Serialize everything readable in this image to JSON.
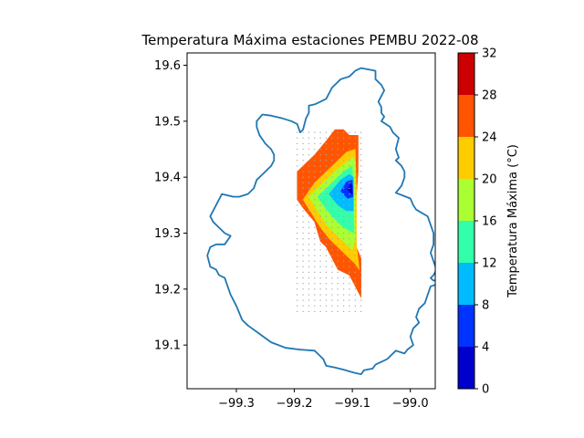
{
  "chart_data": {
    "type": "filled-contour map",
    "title": "Temperatura Máxima estaciones PEMBU 2022-08",
    "xlim": [
      -99.385,
      -98.957
    ],
    "ylim": [
      19.022,
      19.622
    ],
    "x_ticks": [
      -99.3,
      -99.2,
      -99.1,
      -99.0
    ],
    "x_tick_labels": [
      "−99.3",
      "−99.2",
      "−99.1",
      "−99.0"
    ],
    "y_ticks": [
      19.1,
      19.2,
      19.3,
      19.4,
      19.5,
      19.6
    ],
    "y_tick_labels": [
      "19.1",
      "19.2",
      "19.3",
      "19.4",
      "19.5",
      "19.6"
    ],
    "colorbar": {
      "label": "Temperatura Máxima (°C)",
      "levels": [
        0,
        4,
        8,
        12,
        16,
        20,
        24,
        28,
        32
      ],
      "tick_labels": [
        "0",
        "4",
        "8",
        "12",
        "16",
        "20",
        "24",
        "28",
        "32"
      ],
      "colors": [
        "#0000cc",
        "#0033ff",
        "#00bbff",
        "#33ffaa",
        "#aaff33",
        "#ffcc00",
        "#ff5500",
        "#cc0000"
      ]
    },
    "boundary_color": "#1f77b4",
    "interpolation_grid": {
      "x": [
        -99.195,
        -99.085
      ],
      "y": [
        19.16,
        19.48
      ],
      "step": 0.01
    },
    "contour_bands": [
      {
        "range": [
          24,
          28
        ],
        "color": "#ff5500",
        "polygon": [
          [
            -99.195,
            19.41
          ],
          [
            -99.165,
            19.44
          ],
          [
            -99.145,
            19.465
          ],
          [
            -99.13,
            19.485
          ],
          [
            -99.115,
            19.485
          ],
          [
            -99.105,
            19.475
          ],
          [
            -99.09,
            19.475
          ],
          [
            -99.09,
            19.41
          ],
          [
            -99.095,
            19.34
          ],
          [
            -99.095,
            19.28
          ],
          [
            -99.085,
            19.255
          ],
          [
            -99.085,
            19.185
          ],
          [
            -99.095,
            19.205
          ],
          [
            -99.105,
            19.225
          ],
          [
            -99.125,
            19.235
          ],
          [
            -99.135,
            19.255
          ],
          [
            -99.145,
            19.275
          ],
          [
            -99.155,
            19.285
          ],
          [
            -99.165,
            19.32
          ],
          [
            -99.185,
            19.345
          ],
          [
            -99.195,
            19.36
          ]
        ]
      },
      {
        "range": [
          20,
          24
        ],
        "color": "#ffcc00",
        "polygon": [
          [
            -99.185,
            19.36
          ],
          [
            -99.165,
            19.39
          ],
          [
            -99.135,
            19.42
          ],
          [
            -99.11,
            19.445
          ],
          [
            -99.095,
            19.45
          ],
          [
            -99.093,
            19.38
          ],
          [
            -99.093,
            19.28
          ],
          [
            -99.088,
            19.235
          ],
          [
            -99.095,
            19.245
          ],
          [
            -99.105,
            19.255
          ],
          [
            -99.12,
            19.27
          ],
          [
            -99.14,
            19.29
          ],
          [
            -99.155,
            19.31
          ],
          [
            -99.17,
            19.335
          ]
        ]
      },
      {
        "range": [
          16,
          20
        ],
        "color": "#aaff33",
        "polygon": [
          [
            -99.175,
            19.365
          ],
          [
            -99.15,
            19.39
          ],
          [
            -99.125,
            19.415
          ],
          [
            -99.1,
            19.435
          ],
          [
            -99.095,
            19.43
          ],
          [
            -99.095,
            19.29
          ],
          [
            -99.1,
            19.27
          ],
          [
            -99.12,
            19.29
          ],
          [
            -99.145,
            19.315
          ],
          [
            -99.16,
            19.34
          ]
        ]
      },
      {
        "range": [
          12,
          16
        ],
        "color": "#33ffaa",
        "polygon": [
          [
            -99.16,
            19.365
          ],
          [
            -99.135,
            19.39
          ],
          [
            -99.115,
            19.41
          ],
          [
            -99.1,
            19.42
          ],
          [
            -99.097,
            19.3
          ],
          [
            -99.115,
            19.31
          ],
          [
            -99.135,
            19.33
          ],
          [
            -99.15,
            19.35
          ]
        ]
      },
      {
        "range": [
          8,
          12
        ],
        "color": "#00bbff",
        "polygon": [
          [
            -99.14,
            19.37
          ],
          [
            -99.12,
            19.395
          ],
          [
            -99.105,
            19.405
          ],
          [
            -99.098,
            19.4
          ],
          [
            -99.098,
            19.34
          ],
          [
            -99.11,
            19.34
          ],
          [
            -99.125,
            19.35
          ]
        ]
      },
      {
        "range": [
          4,
          8
        ],
        "color": "#0033ff",
        "polygon": [
          [
            -99.12,
            19.375
          ],
          [
            -99.11,
            19.392
          ],
          [
            -99.1,
            19.395
          ],
          [
            -99.099,
            19.365
          ],
          [
            -99.108,
            19.362
          ]
        ]
      },
      {
        "range": [
          0,
          4
        ],
        "color": "#0000cc",
        "polygon": [
          [
            -99.108,
            19.378
          ],
          [
            -99.103,
            19.388
          ],
          [
            -99.1,
            19.386
          ],
          [
            -99.1,
            19.37
          ],
          [
            -99.104,
            19.372
          ]
        ]
      }
    ],
    "boundary_outline": [
      [
        -99.07,
        19.592
      ],
      [
        -99.06,
        19.59
      ],
      [
        -99.06,
        19.575
      ],
      [
        -99.055,
        19.57
      ],
      [
        -99.05,
        19.565
      ],
      [
        -99.045,
        19.555
      ],
      [
        -99.05,
        19.545
      ],
      [
        -99.055,
        19.535
      ],
      [
        -99.05,
        19.525
      ],
      [
        -99.05,
        19.515
      ],
      [
        -99.045,
        19.508
      ],
      [
        -99.05,
        19.5
      ],
      [
        -99.035,
        19.49
      ],
      [
        -99.03,
        19.48
      ],
      [
        -99.02,
        19.47
      ],
      [
        -99.025,
        19.45
      ],
      [
        -99.02,
        19.435
      ],
      [
        -99.025,
        19.43
      ],
      [
        -99.015,
        19.42
      ],
      [
        -99.01,
        19.41
      ],
      [
        -99.01,
        19.4
      ],
      [
        -99.015,
        19.385
      ],
      [
        -99.025,
        19.372
      ],
      [
        -99.0,
        19.362
      ],
      [
        -98.995,
        19.35
      ],
      [
        -98.99,
        19.342
      ],
      [
        -98.97,
        19.33
      ],
      [
        -98.965,
        19.315
      ],
      [
        -98.96,
        19.3
      ],
      [
        -98.96,
        19.28
      ],
      [
        -98.965,
        19.265
      ],
      [
        -98.96,
        19.25
      ],
      [
        -98.955,
        19.235
      ],
      [
        -98.96,
        19.225
      ],
      [
        -98.965,
        19.22
      ],
      [
        -98.96,
        19.215
      ],
      [
        -98.945,
        19.22
      ],
      [
        -98.95,
        19.21
      ],
      [
        -98.965,
        19.205
      ],
      [
        -98.97,
        19.19
      ],
      [
        -98.975,
        19.175
      ],
      [
        -98.985,
        19.165
      ],
      [
        -98.99,
        19.15
      ],
      [
        -98.985,
        19.14
      ],
      [
        -98.995,
        19.13
      ],
      [
        -99.0,
        19.115
      ],
      [
        -98.995,
        19.1
      ],
      [
        -99.005,
        19.092
      ],
      [
        -99.01,
        19.085
      ],
      [
        -99.025,
        19.09
      ],
      [
        -99.04,
        19.075
      ],
      [
        -99.05,
        19.07
      ],
      [
        -99.06,
        19.065
      ],
      [
        -99.065,
        19.058
      ],
      [
        -99.08,
        19.055
      ],
      [
        -99.085,
        19.048
      ],
      [
        -99.095,
        19.05
      ],
      [
        -99.105,
        19.053
      ],
      [
        -99.115,
        19.056
      ],
      [
        -99.13,
        19.06
      ],
      [
        -99.145,
        19.063
      ],
      [
        -99.15,
        19.075
      ],
      [
        -99.16,
        19.085
      ],
      [
        -99.165,
        19.09
      ],
      [
        -99.19,
        19.092
      ],
      [
        -99.215,
        19.095
      ],
      [
        -99.24,
        19.105
      ],
      [
        -99.26,
        19.12
      ],
      [
        -99.28,
        19.135
      ],
      [
        -99.29,
        19.145
      ],
      [
        -99.3,
        19.17
      ],
      [
        -99.31,
        19.19
      ],
      [
        -99.315,
        19.205
      ],
      [
        -99.32,
        19.22
      ],
      [
        -99.33,
        19.225
      ],
      [
        -99.335,
        19.235
      ],
      [
        -99.345,
        19.24
      ],
      [
        -99.35,
        19.26
      ],
      [
        -99.345,
        19.275
      ],
      [
        -99.335,
        19.28
      ],
      [
        -99.32,
        19.28
      ],
      [
        -99.31,
        19.295
      ],
      [
        -99.32,
        19.3
      ],
      [
        -99.33,
        19.31
      ],
      [
        -99.34,
        19.32
      ],
      [
        -99.345,
        19.33
      ],
      [
        -99.335,
        19.35
      ],
      [
        -99.33,
        19.36
      ],
      [
        -99.325,
        19.37
      ],
      [
        -99.305,
        19.365
      ],
      [
        -99.295,
        19.365
      ],
      [
        -99.28,
        19.37
      ],
      [
        -99.27,
        19.38
      ],
      [
        -99.265,
        19.395
      ],
      [
        -99.255,
        19.405
      ],
      [
        -99.24,
        19.42
      ],
      [
        -99.235,
        19.43
      ],
      [
        -99.235,
        19.44
      ],
      [
        -99.24,
        19.45
      ],
      [
        -99.25,
        19.46
      ],
      [
        -99.26,
        19.475
      ],
      [
        -99.265,
        19.49
      ],
      [
        -99.265,
        19.5
      ],
      [
        -99.255,
        19.512
      ],
      [
        -99.24,
        19.51
      ],
      [
        -99.22,
        19.505
      ],
      [
        -99.205,
        19.5
      ],
      [
        -99.195,
        19.495
      ],
      [
        -99.19,
        19.48
      ],
      [
        -99.185,
        19.485
      ],
      [
        -99.18,
        19.505
      ],
      [
        -99.175,
        19.515
      ],
      [
        -99.175,
        19.528
      ],
      [
        -99.165,
        19.53
      ],
      [
        -99.155,
        19.535
      ],
      [
        -99.145,
        19.54
      ],
      [
        -99.135,
        19.56
      ],
      [
        -99.12,
        19.575
      ],
      [
        -99.105,
        19.58
      ],
      [
        -99.095,
        19.59
      ],
      [
        -99.085,
        19.595
      ]
    ]
  }
}
